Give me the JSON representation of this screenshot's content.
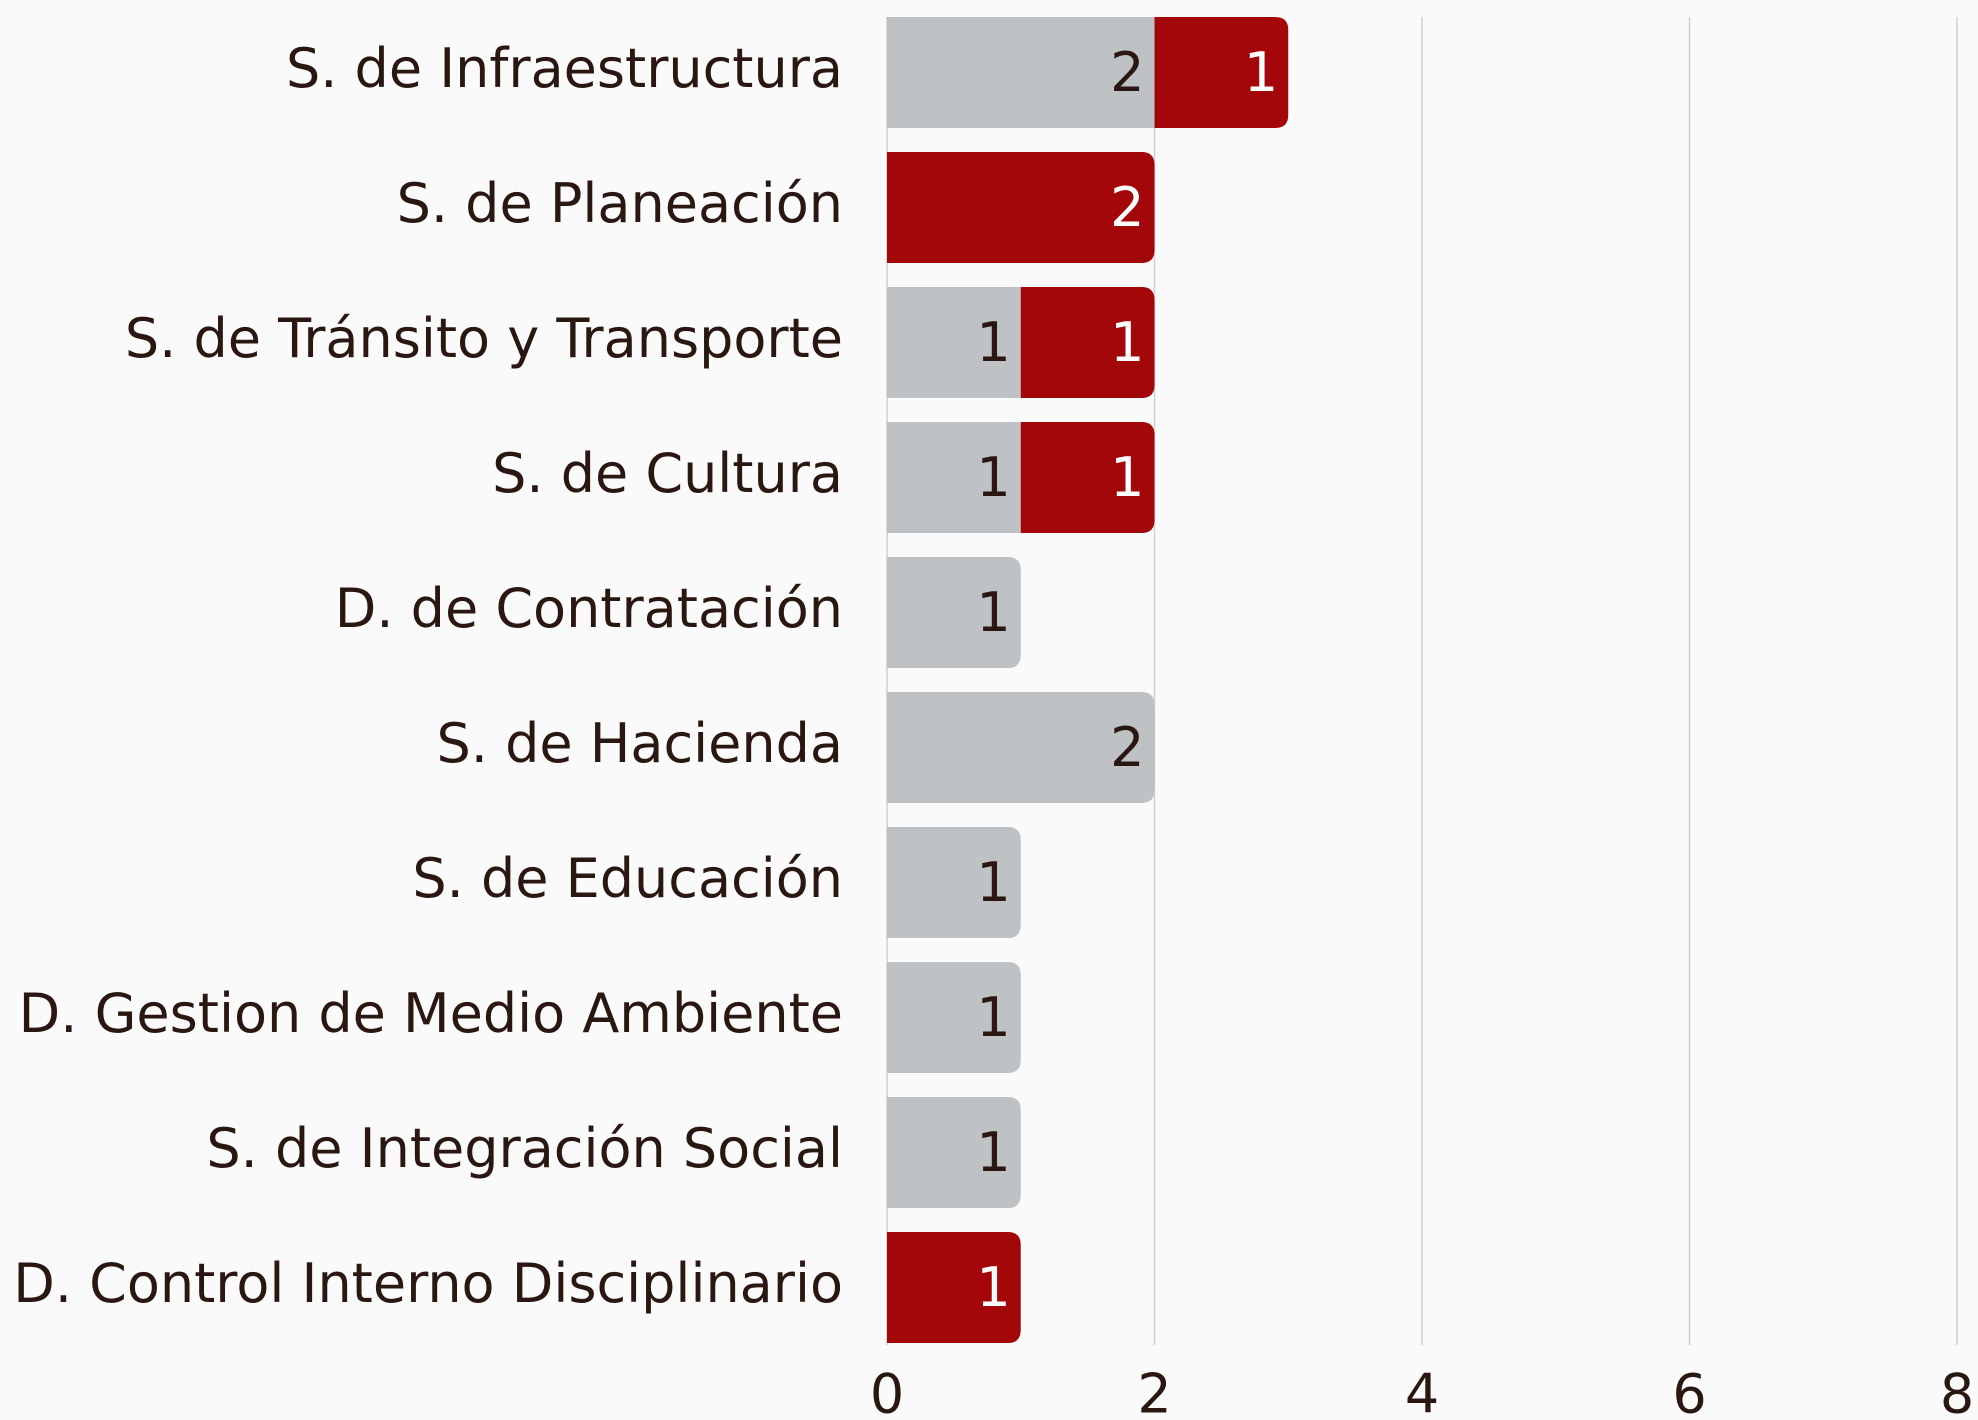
{
  "chart_data": {
    "type": "stacked_barh",
    "categories": [
      "S. de Infraestructura",
      "S. de Planeación",
      "S. de Tránsito y Transporte",
      "S. de Cultura",
      "D. de Contratación",
      "S. de Hacienda",
      "S. de Educación",
      "D. Gestion de Medio Ambiente",
      "S. de Integración Social",
      "D. Control Interno Disciplinario"
    ],
    "series": [
      {
        "color": "#bec2c4",
        "label_color": "#2a1712",
        "values": [
          2,
          null,
          1,
          1,
          1,
          2,
          1,
          1,
          1,
          null
        ]
      },
      {
        "color": "#a30709",
        "label_color": "#ffffff",
        "values": [
          1,
          2,
          1,
          1,
          null,
          null,
          null,
          null,
          null,
          1
        ]
      }
    ],
    "xlim": [
      0,
      8
    ],
    "xticks": [
      0,
      2,
      4,
      6,
      8
    ],
    "grid": true
  }
}
